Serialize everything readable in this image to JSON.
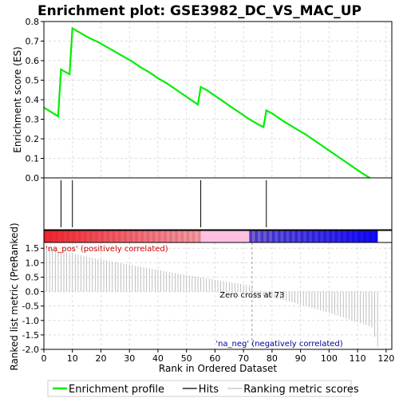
{
  "chart_data": {
    "type": "line",
    "title": "Enrichment plot: GSE3982_DC_VS_MAC_UP",
    "ylabel_top": "Enrichment score (ES)",
    "ylabel_bottom": "Ranked list metric (PreRanked)",
    "xlabel": "Rank in Ordered Dataset",
    "top_ylim": [
      0,
      0.8
    ],
    "top_yticks": [
      "0.0",
      "0.1",
      "0.2",
      "0.3",
      "0.4",
      "0.5",
      "0.6",
      "0.7",
      "0.8"
    ],
    "bottom_ylim": [
      -2.0,
      1.7
    ],
    "bottom_yticks": [
      "-2.0",
      "-1.5",
      "-1.0",
      "-0.5",
      "0.0",
      "0.5",
      "1.0",
      "1.5"
    ],
    "xlim": [
      0,
      122
    ],
    "xticks": [
      "0",
      "10",
      "20",
      "30",
      "40",
      "50",
      "60",
      "70",
      "80",
      "90",
      "100",
      "110",
      "120"
    ],
    "grid": true,
    "colors": {
      "es_line": "#00ee00",
      "hits": "#000000",
      "metric": "#b0b0b0",
      "pos_label": "#cc0000",
      "neg_label": "#000099",
      "grid": "#dddddd"
    },
    "es_series": {
      "name": "Enrichment profile",
      "x": [
        0,
        5,
        6,
        9,
        10,
        13,
        16,
        19,
        22,
        25,
        28,
        31,
        34,
        37,
        40,
        43,
        46,
        49,
        52,
        54,
        55,
        57,
        60,
        63,
        66,
        69,
        72,
        75,
        77,
        78,
        80,
        84,
        88,
        92,
        96,
        100,
        104,
        108,
        112,
        116,
        117
      ],
      "values": [
        0.36,
        0.315,
        0.555,
        0.53,
        0.765,
        0.74,
        0.715,
        0.695,
        0.67,
        0.645,
        0.62,
        0.595,
        0.565,
        0.54,
        0.51,
        0.485,
        0.455,
        0.425,
        0.395,
        0.375,
        0.465,
        0.45,
        0.42,
        0.39,
        0.36,
        0.33,
        0.3,
        0.275,
        0.26,
        0.345,
        0.33,
        0.29,
        0.255,
        0.22,
        0.18,
        0.14,
        0.1,
        0.06,
        0.02,
        -0.015,
        -0.02
      ]
    },
    "hits": [
      6,
      10,
      55,
      78
    ],
    "metric_range": [
      1,
      117
    ],
    "zero_cross": 73,
    "zero_cross_label": "Zero cross at 73",
    "pos_label": "'na_pos' (positively correlated)",
    "neg_label": "'na_neg' (negatively correlated)",
    "legend": [
      {
        "label": "Enrichment profile",
        "kind": "line"
      },
      {
        "label": "Hits",
        "kind": "hit"
      },
      {
        "label": "Ranking metric scores",
        "kind": "metric"
      }
    ]
  }
}
